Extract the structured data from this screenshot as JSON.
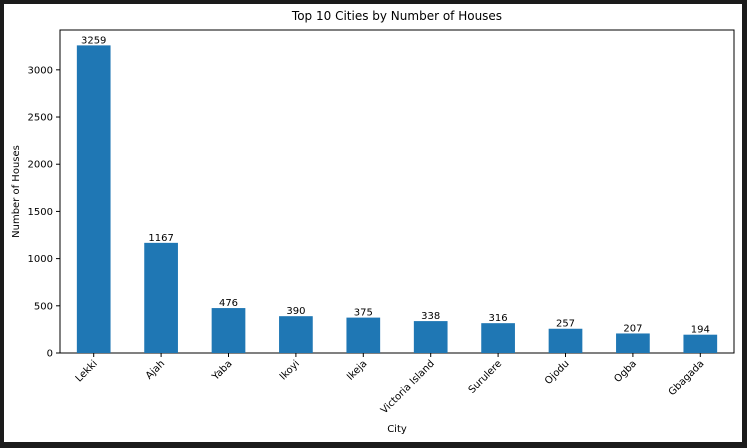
{
  "chart_data": {
    "type": "bar",
    "title": "Top 10 Cities by Number of Houses",
    "xlabel": "City",
    "ylabel": "Number of Houses",
    "categories": [
      "Lekki",
      "Ajah",
      "Yaba",
      "Ikoyi",
      "Ikeja",
      "Victoria Island",
      "Surulere",
      "Ojodu",
      "Ogba",
      "Gbagada"
    ],
    "values": [
      3259,
      1167,
      476,
      390,
      375,
      338,
      316,
      257,
      207,
      194
    ],
    "ylim": [
      0,
      3421.95
    ],
    "yticks": [
      0,
      500,
      1000,
      1500,
      2000,
      2500,
      3000
    ],
    "bar_color": "#1f77b4",
    "grid": false,
    "legend": false
  }
}
